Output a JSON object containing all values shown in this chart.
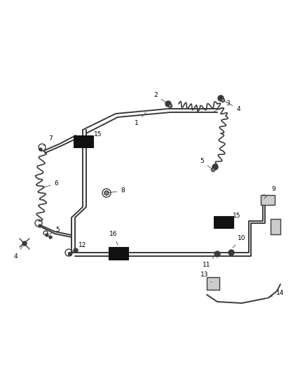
{
  "bg_color": "#ffffff",
  "line_color": "#3a3a3a",
  "black_color": "#111111",
  "figsize": [
    4.38,
    5.33
  ],
  "dpi": 100,
  "label_fontsize": 6.5,
  "leader_lw": 0.6,
  "leader_color": "#444444"
}
